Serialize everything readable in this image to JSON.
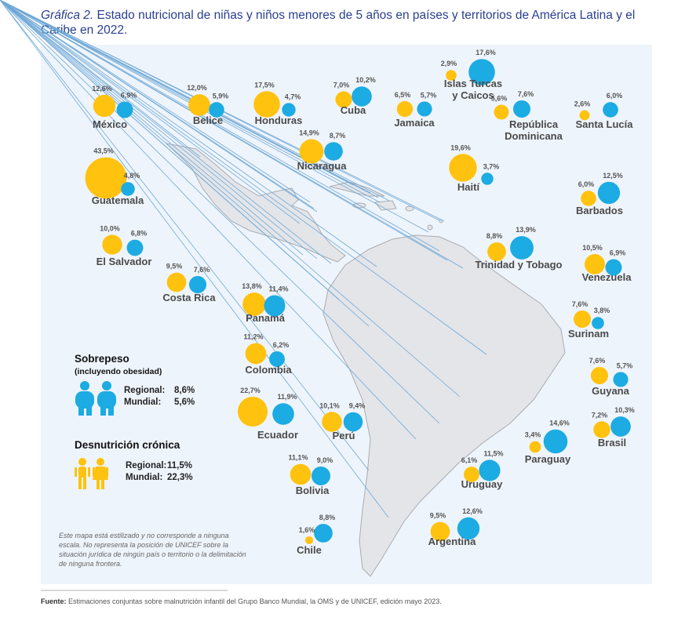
{
  "title_label": "Gráfica 2.",
  "title": "Estado nutricional de niñas y niños menores de 5 años en países y territorios de América Latina y el Caribe en 2022.",
  "colors": {
    "stunting": "#FFC20E",
    "overweight": "#1CABE2"
  },
  "countries": [
    {
      "name": [
        "México"
      ],
      "stunting": 12.6,
      "stunting_label": "12,6%",
      "overweight": 6.9,
      "overweight_label": "6,9%"
    },
    {
      "name": [
        "Belice"
      ],
      "stunting": 12.0,
      "stunting_label": "12,0%",
      "overweight": 5.9,
      "overweight_label": "5,9%"
    },
    {
      "name": [
        "Honduras"
      ],
      "stunting": 17.5,
      "stunting_label": "17,5%",
      "overweight": 4.7,
      "overweight_label": "4,7%"
    },
    {
      "name": [
        "Cuba"
      ],
      "stunting": 7.0,
      "stunting_label": "7,0%",
      "overweight": 10.2,
      "overweight_label": "10,2%"
    },
    {
      "name": [
        "Jamaica"
      ],
      "stunting": 6.5,
      "stunting_label": "6,5%",
      "overweight": 5.7,
      "overweight_label": "5,7%"
    },
    {
      "name": [
        "Islas Turcas",
        "y Caicos"
      ],
      "stunting": 2.9,
      "stunting_label": "2,9%",
      "overweight": 17.6,
      "overweight_label": "17,6%"
    },
    {
      "name": [
        "República",
        "Dominicana"
      ],
      "stunting": 5.6,
      "stunting_label": "5,6%",
      "overweight": 7.6,
      "overweight_label": "7,6%"
    },
    {
      "name": [
        "Santa Lucía"
      ],
      "stunting": 2.6,
      "stunting_label": "2,6%",
      "overweight": 6.0,
      "overweight_label": "6,0%"
    },
    {
      "name": [
        "Nicaragua"
      ],
      "stunting": 14.9,
      "stunting_label": "14,9%",
      "overweight": 8.7,
      "overweight_label": "8,7%"
    },
    {
      "name": [
        "Guatemala"
      ],
      "stunting": 43.5,
      "stunting_label": "43,5%",
      "overweight": 4.8,
      "overweight_label": "4,8%"
    },
    {
      "name": [
        "Haití"
      ],
      "stunting": 19.6,
      "stunting_label": "19,6%",
      "overweight": 3.7,
      "overweight_label": "3,7%"
    },
    {
      "name": [
        "Barbados"
      ],
      "stunting": 6.0,
      "stunting_label": "6,0%",
      "overweight": 12.5,
      "overweight_label": "12,5%"
    },
    {
      "name": [
        "El Salvador"
      ],
      "stunting": 10.0,
      "stunting_label": "10,0%",
      "overweight": 6.8,
      "overweight_label": "6,8%"
    },
    {
      "name": [
        "Trinidad y Tobago"
      ],
      "stunting": 8.8,
      "stunting_label": "8,8%",
      "overweight": 13.9,
      "overweight_label": "13,9%"
    },
    {
      "name": [
        "Venezuela"
      ],
      "stunting": 10.5,
      "stunting_label": "10,5%",
      "overweight": 6.9,
      "overweight_label": "6,9%"
    },
    {
      "name": [
        "Costa Rica"
      ],
      "stunting": 9.5,
      "stunting_label": "9,5%",
      "overweight": 7.6,
      "overweight_label": "7,6%"
    },
    {
      "name": [
        "Panamá"
      ],
      "stunting": 13.8,
      "stunting_label": "13,8%",
      "overweight": 11.4,
      "overweight_label": "11,4%"
    },
    {
      "name": [
        "Surinam"
      ],
      "stunting": 7.6,
      "stunting_label": "7,6%",
      "overweight": 3.8,
      "overweight_label": "3,8%"
    },
    {
      "name": [
        "Colombia"
      ],
      "stunting": 11.2,
      "stunting_label": "11,2%",
      "overweight": 6.2,
      "overweight_label": "6,2%"
    },
    {
      "name": [
        "Guyana"
      ],
      "stunting": 7.6,
      "stunting_label": "7,6%",
      "overweight": 5.7,
      "overweight_label": "5,7%"
    },
    {
      "name": [
        "Ecuador"
      ],
      "stunting": 22.7,
      "stunting_label": "22,7%",
      "overweight": 11.9,
      "overweight_label": "11,9%"
    },
    {
      "name": [
        "Perú"
      ],
      "stunting": 10.1,
      "stunting_label": "10,1%",
      "overweight": 9.4,
      "overweight_label": "9,4%"
    },
    {
      "name": [
        "Brasil"
      ],
      "stunting": 7.2,
      "stunting_label": "7,2%",
      "overweight": 10.3,
      "overweight_label": "10,3%"
    },
    {
      "name": [
        "Paraguay"
      ],
      "stunting": 3.4,
      "stunting_label": "3,4%",
      "overweight": 14.6,
      "overweight_label": "14,6%"
    },
    {
      "name": [
        "Bolivia"
      ],
      "stunting": 11.1,
      "stunting_label": "11,1%",
      "overweight": 9.0,
      "overweight_label": "9,0%"
    },
    {
      "name": [
        "Uruguay"
      ],
      "stunting": 6.1,
      "stunting_label": "6,1%",
      "overweight": 11.5,
      "overweight_label": "11,5%"
    },
    {
      "name": [
        "Chile"
      ],
      "stunting": 1.6,
      "stunting_label": "1,6%",
      "overweight": 8.8,
      "overweight_label": "8,8%"
    },
    {
      "name": [
        "Argentina"
      ],
      "stunting": 9.5,
      "stunting_label": "9,5%",
      "overweight": 12.6,
      "overweight_label": "12,6%"
    }
  ],
  "legend": {
    "overweight": {
      "title": "Sobrepeso",
      "subtitle": "(incluyendo obesidad)",
      "regional_label": "Regional:",
      "regional": "8,6%",
      "world_label": "Mundial:",
      "world": "5,6%"
    },
    "stunting": {
      "title": "Desnutrición crónica",
      "regional_label": "Regional:",
      "regional": "11,5%",
      "world_label": "Mundial:",
      "world": "22,3%"
    }
  },
  "note": "Este mapa está estilizado y no corresponde a ninguna escala. No representa la posición de UNICEF sobre la situación jurídica de ningún país o territorio o la delimitación de ninguna frontera.",
  "source_label": "Fuente:",
  "source": "Estimaciones conjuntas sobre malnutrición infantil del Grupo Banco Mundial, la OMS y de UNICEF, edición mayo 2023."
}
